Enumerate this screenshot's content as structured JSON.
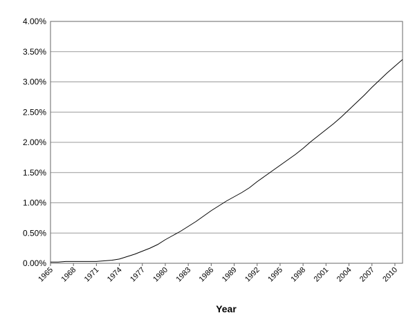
{
  "chart_data": {
    "type": "line",
    "x_label": "Year",
    "x": [
      1965,
      1966,
      1967,
      1968,
      1969,
      1970,
      1971,
      1972,
      1973,
      1974,
      1975,
      1976,
      1977,
      1978,
      1979,
      1980,
      1981,
      1982,
      1983,
      1984,
      1985,
      1986,
      1987,
      1988,
      1989,
      1990,
      1991,
      1992,
      1993,
      1994,
      1995,
      1996,
      1997,
      1998,
      1999,
      2000,
      2001,
      2002,
      2003,
      2004,
      2005,
      2006,
      2007,
      2008,
      2009,
      2010,
      2011
    ],
    "series": [
      {
        "color": "#000000",
        "values": [
          0.02,
          0.02,
          0.03,
          0.03,
          0.03,
          0.03,
          0.03,
          0.04,
          0.05,
          0.07,
          0.11,
          0.15,
          0.2,
          0.25,
          0.31,
          0.39,
          0.46,
          0.53,
          0.61,
          0.69,
          0.78,
          0.87,
          0.95,
          1.03,
          1.1,
          1.17,
          1.25,
          1.35,
          1.44,
          1.53,
          1.62,
          1.71,
          1.8,
          1.9,
          2.01,
          2.11,
          2.21,
          2.31,
          2.42,
          2.54,
          2.66,
          2.78,
          2.91,
          3.03,
          3.15,
          3.26,
          3.37
        ]
      }
    ],
    "xlim": [
      1965,
      2011
    ],
    "xticks": [
      1965,
      1968,
      1971,
      1974,
      1977,
      1980,
      1983,
      1986,
      1989,
      1992,
      1995,
      1998,
      2001,
      2004,
      2007,
      2010
    ],
    "ylim": [
      0,
      4
    ],
    "yticks": [
      {
        "value": 0,
        "label": "0.00%"
      },
      {
        "value": 0.5,
        "label": "0.50%"
      },
      {
        "value": 1,
        "label": "1.00%"
      },
      {
        "value": 1.5,
        "label": "1.50%"
      },
      {
        "value": 2,
        "label": "2.00%"
      },
      {
        "value": 2.5,
        "label": "2.50%"
      },
      {
        "value": 3,
        "label": "3.00%"
      },
      {
        "value": 3.5,
        "label": "3.50%"
      },
      {
        "value": 4,
        "label": "4.00%"
      }
    ],
    "grid": true
  }
}
